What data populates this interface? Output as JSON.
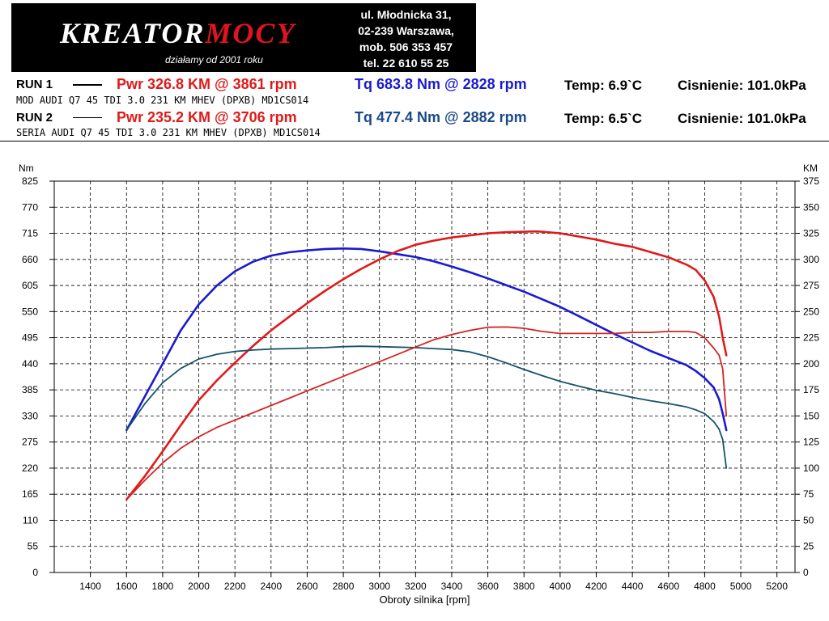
{
  "logo": {
    "name_part1": "KREATOR",
    "name_part2": "MOCY",
    "tagline": "działamy od 2001 roku",
    "contact": [
      "ul. Młodnicka 31,",
      "02-239  Warszawa,",
      "mob.  506 353 457",
      "tel.  22 610 55 25"
    ]
  },
  "runs": [
    {
      "label": "RUN 1",
      "pwr": "Pwr  326.8 KM @ 3861 rpm",
      "tq": "Tq 683.8 Nm @ 2828 rpm",
      "temp": "Temp: 6.9`C",
      "pressure": "Cisnienie: 101.0kPa",
      "description": "MOD AUDI Q7 45 TDI 3.0 231 KM MHEV (DPXB) MD1CS014"
    },
    {
      "label": "RUN 2",
      "pwr": "Pwr  235.2 KM @ 3706 rpm",
      "tq": "Tq 477.4 Nm @ 2882 rpm",
      "temp": "Temp: 6.5`C",
      "pressure": "Cisnienie: 101.0kPa",
      "description": "SERIA AUDI Q7 45 TDI 3.0 231 KM MHEV (DPXB) MD1CS014"
    }
  ],
  "colors": {
    "run1_power": "#e01a1a",
    "run2_power": "#d42424",
    "run1_torque": "#1a1ad2",
    "run2_torque": "#15536b",
    "pwr_text": "#e01a1a",
    "tq_run1_text": "#1a1ad2",
    "tq_run2_text": "#1a4a8a"
  },
  "chart_data": {
    "type": "line",
    "xlabel": "Obroty silnika [rpm]",
    "ylabel_left": "Nm",
    "ylabel_right": "KM",
    "xlim": [
      1200,
      5300
    ],
    "ylim_left": [
      0,
      825
    ],
    "ylim_right": [
      0,
      375
    ],
    "xticks": [
      1400,
      1600,
      1800,
      2000,
      2200,
      2400,
      2600,
      2800,
      3000,
      3200,
      3400,
      3600,
      3800,
      4000,
      4200,
      4400,
      4600,
      4800,
      5000,
      5200
    ],
    "yticks_left": [
      0,
      55,
      110,
      165,
      220,
      275,
      330,
      385,
      440,
      495,
      550,
      605,
      660,
      715,
      770,
      825
    ],
    "yticks_right": [
      0,
      25,
      50,
      75,
      100,
      125,
      150,
      175,
      200,
      225,
      250,
      275,
      300,
      325,
      350,
      375
    ],
    "grid": true,
    "series": [
      {
        "run": "RUN 1",
        "quantity": "torque",
        "axis": "left",
        "color_key": "run1_torque",
        "width": 2.6,
        "x": [
          1600,
          1700,
          1800,
          1900,
          2000,
          2100,
          2200,
          2300,
          2400,
          2500,
          2600,
          2700,
          2800,
          2900,
          3000,
          3100,
          3200,
          3300,
          3400,
          3500,
          3600,
          3700,
          3800,
          3900,
          4000,
          4100,
          4200,
          4300,
          4400,
          4500,
          4600,
          4700,
          4750,
          4800,
          4850,
          4880,
          4900,
          4920
        ],
        "y": [
          300,
          370,
          440,
          510,
          565,
          605,
          635,
          655,
          668,
          675,
          679,
          682,
          683,
          682,
          677,
          671,
          665,
          656,
          645,
          633,
          620,
          606,
          592,
          576,
          560,
          541,
          522,
          503,
          485,
          467,
          452,
          437,
          425,
          410,
          390,
          365,
          335,
          300
        ]
      },
      {
        "run": "RUN 1",
        "quantity": "power",
        "axis": "right",
        "color_key": "run1_power",
        "width": 2.6,
        "x": [
          1600,
          1700,
          1800,
          1900,
          2000,
          2100,
          2200,
          2300,
          2400,
          2500,
          2600,
          2700,
          2800,
          2900,
          3000,
          3100,
          3200,
          3300,
          3400,
          3500,
          3600,
          3700,
          3800,
          3861,
          3900,
          4000,
          4100,
          4200,
          4300,
          4400,
          4500,
          4600,
          4700,
          4750,
          4800,
          4850,
          4880,
          4900,
          4920
        ],
        "y": [
          70,
          92,
          116,
          141,
          165,
          184,
          201,
          217,
          232,
          245,
          258,
          270,
          281,
          291,
          300,
          308,
          314,
          318,
          321,
          323,
          325,
          326,
          326.5,
          326.8,
          326.5,
          325,
          322,
          319,
          315,
          312,
          307,
          302,
          295,
          290,
          280,
          264,
          245,
          225,
          208
        ]
      },
      {
        "run": "RUN 2",
        "quantity": "torque",
        "axis": "left",
        "color_key": "run2_torque",
        "width": 1.8,
        "x": [
          1600,
          1700,
          1800,
          1900,
          2000,
          2100,
          2200,
          2300,
          2400,
          2500,
          2600,
          2700,
          2800,
          2900,
          3000,
          3100,
          3200,
          3300,
          3400,
          3500,
          3600,
          3700,
          3800,
          3900,
          4000,
          4100,
          4200,
          4300,
          4400,
          4500,
          4600,
          4700,
          4750,
          4800,
          4850,
          4880,
          4900,
          4920
        ],
        "y": [
          300,
          355,
          400,
          430,
          450,
          460,
          466,
          469,
          471,
          472,
          473,
          474,
          476,
          477,
          476,
          475,
          474,
          472,
          470,
          465,
          455,
          442,
          428,
          415,
          403,
          393,
          384,
          377,
          369,
          362,
          356,
          349,
          343,
          335,
          318,
          302,
          280,
          220
        ]
      },
      {
        "run": "RUN 2",
        "quantity": "power",
        "axis": "right",
        "color_key": "run2_power",
        "width": 1.8,
        "x": [
          1600,
          1700,
          1800,
          1900,
          2000,
          2100,
          2200,
          2300,
          2400,
          2500,
          2600,
          2700,
          2800,
          2900,
          3000,
          3100,
          3200,
          3300,
          3400,
          3500,
          3600,
          3706,
          3800,
          3900,
          4000,
          4100,
          4200,
          4300,
          4400,
          4500,
          4600,
          4700,
          4750,
          4800,
          4850,
          4880,
          4900,
          4920
        ],
        "y": [
          70,
          88,
          105,
          119,
          130,
          139,
          146,
          153,
          160,
          167,
          174,
          181,
          188,
          195,
          202,
          209,
          216,
          223,
          228,
          232,
          235,
          235.2,
          234,
          231,
          229,
          229,
          229,
          229,
          230,
          230,
          231,
          231,
          230,
          225,
          215,
          208,
          195,
          150
        ]
      }
    ]
  }
}
